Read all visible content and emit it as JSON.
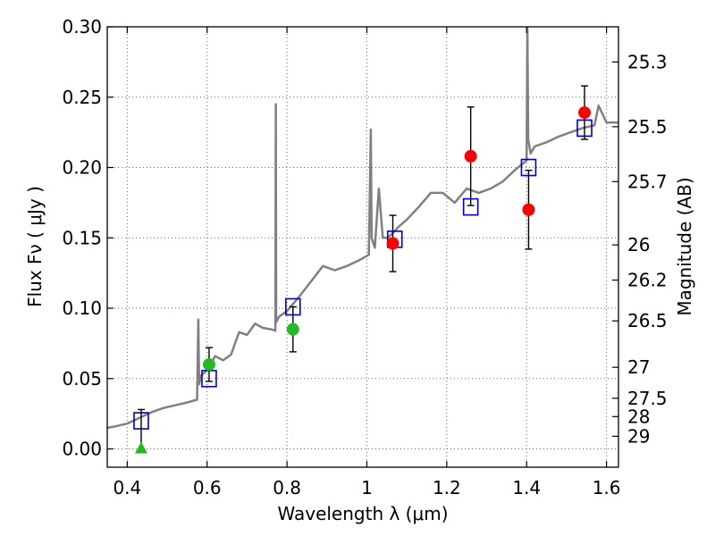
{
  "chart_data": {
    "type": "line",
    "xlabel": "Wavelength  λ (μm)",
    "ylabel": "Flux  Fν  ( μJy )",
    "ylabel_right": "Magnitude (AB)",
    "xlim": [
      0.35,
      1.63
    ],
    "ylim": [
      -0.013,
      0.3
    ],
    "grid": true,
    "x_ticks": [
      {
        "value": 0.4,
        "label": "0.4"
      },
      {
        "value": 0.6,
        "label": "0.6"
      },
      {
        "value": 0.8,
        "label": "0.8"
      },
      {
        "value": 1.0,
        "label": "1"
      },
      {
        "value": 1.2,
        "label": "1.2"
      },
      {
        "value": 1.4,
        "label": "1.4"
      },
      {
        "value": 1.6,
        "label": "1.6"
      }
    ],
    "y_ticks": [
      {
        "value": 0.0,
        "label": "0.00"
      },
      {
        "value": 0.05,
        "label": "0.05"
      },
      {
        "value": 0.1,
        "label": "0.10"
      },
      {
        "value": 0.15,
        "label": "0.15"
      },
      {
        "value": 0.2,
        "label": "0.20"
      },
      {
        "value": 0.25,
        "label": "0.25"
      },
      {
        "value": 0.3,
        "label": "0.30"
      }
    ],
    "right_ticks": [
      {
        "label": "25.3",
        "flux": 0.275
      },
      {
        "label": "25.5",
        "flux": 0.229
      },
      {
        "label": "25.7",
        "flux": 0.19
      },
      {
        "label": "26",
        "flux": 0.145
      },
      {
        "label": "26.2",
        "flux": 0.12
      },
      {
        "label": "26.5",
        "flux": 0.091
      },
      {
        "label": "27",
        "flux": 0.058
      },
      {
        "label": "27.5",
        "flux": 0.036
      },
      {
        "label": "28",
        "flux": 0.023
      },
      {
        "label": "29",
        "flux": 0.009
      }
    ],
    "series": [
      {
        "kind": "spectrum",
        "color": "#808080",
        "x": [
          0.35,
          0.37,
          0.4,
          0.43,
          0.46,
          0.49,
          0.52,
          0.55,
          0.575,
          0.578,
          0.58,
          0.585,
          0.6,
          0.62,
          0.64,
          0.66,
          0.68,
          0.7,
          0.72,
          0.74,
          0.76,
          0.771,
          0.772,
          0.773,
          0.78,
          0.8,
          0.83,
          0.86,
          0.89,
          0.92,
          0.95,
          0.98,
          1.005,
          1.01,
          1.012,
          1.02,
          1.03,
          1.04,
          1.05,
          1.06,
          1.08,
          1.1,
          1.13,
          1.16,
          1.19,
          1.22,
          1.25,
          1.28,
          1.31,
          1.34,
          1.37,
          1.4,
          1.402,
          1.404,
          1.41,
          1.42,
          1.45,
          1.48,
          1.51,
          1.54,
          1.57,
          1.58,
          1.6,
          1.63
        ],
        "y": [
          0.015,
          0.016,
          0.018,
          0.022,
          0.026,
          0.029,
          0.031,
          0.033,
          0.035,
          0.092,
          0.046,
          0.052,
          0.056,
          0.066,
          0.063,
          0.067,
          0.083,
          0.081,
          0.089,
          0.086,
          0.085,
          0.084,
          0.245,
          0.09,
          0.094,
          0.098,
          0.108,
          0.119,
          0.13,
          0.127,
          0.13,
          0.134,
          0.138,
          0.227,
          0.15,
          0.143,
          0.185,
          0.15,
          0.15,
          0.152,
          0.158,
          0.163,
          0.172,
          0.182,
          0.182,
          0.175,
          0.185,
          0.182,
          0.185,
          0.19,
          0.198,
          0.205,
          0.3,
          0.22,
          0.21,
          0.215,
          0.218,
          0.222,
          0.225,
          0.228,
          0.23,
          0.244,
          0.232,
          0.232
        ]
      },
      {
        "kind": "model",
        "color": "#0000cc",
        "x": [
          0.435,
          0.605,
          0.815,
          1.07,
          1.26,
          1.405,
          1.545
        ],
        "y": [
          0.02,
          0.05,
          0.101,
          0.149,
          0.172,
          0.2,
          0.228
        ]
      },
      {
        "kind": "observed",
        "color": "#ff0000",
        "x": [
          1.065,
          1.26,
          1.405,
          1.545
        ],
        "y": [
          0.146,
          0.208,
          0.17,
          0.239
        ],
        "err": [
          0.02,
          0.035,
          0.028,
          0.019
        ]
      },
      {
        "kind": "observed",
        "color": "#22bb22",
        "x": [
          0.605,
          0.815
        ],
        "y": [
          0.06,
          0.085
        ],
        "err": [
          0.012,
          0.016
        ]
      },
      {
        "kind": "upper-limit",
        "color": "#22bb22",
        "x": [
          0.435
        ],
        "y": [
          0.0
        ],
        "err_top": [
          0.028
        ]
      }
    ]
  }
}
